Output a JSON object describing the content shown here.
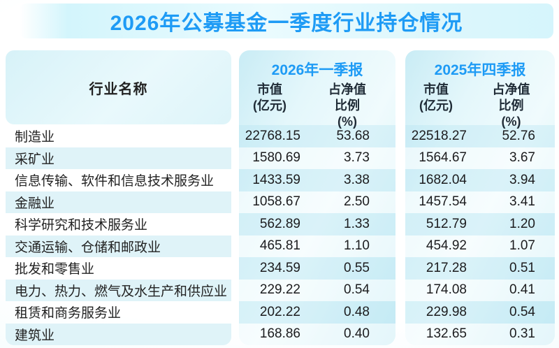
{
  "title": "2026年公募基金一季度行业持仓情况",
  "colors": {
    "accent_blue": "#1e9bf5",
    "stripe_blue": "#dff3f8",
    "panel_cyan": "#c9ecf5",
    "text_dark": "#222222"
  },
  "table": {
    "name_header": "行业名称",
    "groups": [
      {
        "label": "2026年一季报",
        "cols": [
          [
            "市值",
            "(亿元)"
          ],
          [
            "占净值比例",
            "(%)"
          ]
        ]
      },
      {
        "label": "2025年四季报",
        "cols": [
          [
            "市值",
            "(亿元)"
          ],
          [
            "占净值比例",
            "(%)"
          ]
        ]
      }
    ],
    "rows": [
      {
        "name": "制造业",
        "values": [
          "22768.15",
          "53.68",
          "22518.27",
          "52.76"
        ]
      },
      {
        "name": "采矿业",
        "values": [
          "1580.69",
          "3.73",
          "1564.67",
          "3.67"
        ]
      },
      {
        "name": "信息传输、软件和信息技术服务业",
        "values": [
          "1433.59",
          "3.38",
          "1682.04",
          "3.94"
        ]
      },
      {
        "name": "金融业",
        "values": [
          "1058.67",
          "2.50",
          "1457.54",
          "3.41"
        ]
      },
      {
        "name": "科学研究和技术服务业",
        "values": [
          "562.89",
          "1.33",
          "512.79",
          "1.20"
        ]
      },
      {
        "name": "交通运输、仓储和邮政业",
        "values": [
          "465.81",
          "1.10",
          "454.92",
          "1.07"
        ]
      },
      {
        "name": "批发和零售业",
        "values": [
          "234.59",
          "0.55",
          "217.28",
          "0.51"
        ]
      },
      {
        "name": "电力、热力、燃气及水生产和供应业",
        "values": [
          "229.22",
          "0.54",
          "174.08",
          "0.41"
        ]
      },
      {
        "name": "租赁和商务服务业",
        "values": [
          "202.22",
          "0.48",
          "229.98",
          "0.54"
        ]
      },
      {
        "name": "建筑业",
        "values": [
          "168.86",
          "0.40",
          "132.65",
          "0.31"
        ]
      }
    ]
  },
  "chart_data": {
    "type": "table",
    "title": "2026年公募基金一季度行业持仓情况",
    "columns": [
      "行业名称",
      "2026年一季报 市值(亿元)",
      "2026年一季报 占净值比例(%)",
      "2025年四季报 市值(亿元)",
      "2025年四季报 占净值比例(%)"
    ],
    "rows": [
      [
        "制造业",
        22768.15,
        53.68,
        22518.27,
        52.76
      ],
      [
        "采矿业",
        1580.69,
        3.73,
        1564.67,
        3.67
      ],
      [
        "信息传输、软件和信息技术服务业",
        1433.59,
        3.38,
        1682.04,
        3.94
      ],
      [
        "金融业",
        1058.67,
        2.5,
        1457.54,
        3.41
      ],
      [
        "科学研究和技术服务业",
        562.89,
        1.33,
        512.79,
        1.2
      ],
      [
        "交通运输、仓储和邮政业",
        465.81,
        1.1,
        454.92,
        1.07
      ],
      [
        "批发和零售业",
        234.59,
        0.55,
        217.28,
        0.51
      ],
      [
        "电力、热力、燃气及水生产和供应业",
        229.22,
        0.54,
        174.08,
        0.41
      ],
      [
        "租赁和商务服务业",
        202.22,
        0.48,
        229.98,
        0.54
      ],
      [
        "建筑业",
        168.86,
        0.4,
        132.65,
        0.31
      ]
    ]
  }
}
